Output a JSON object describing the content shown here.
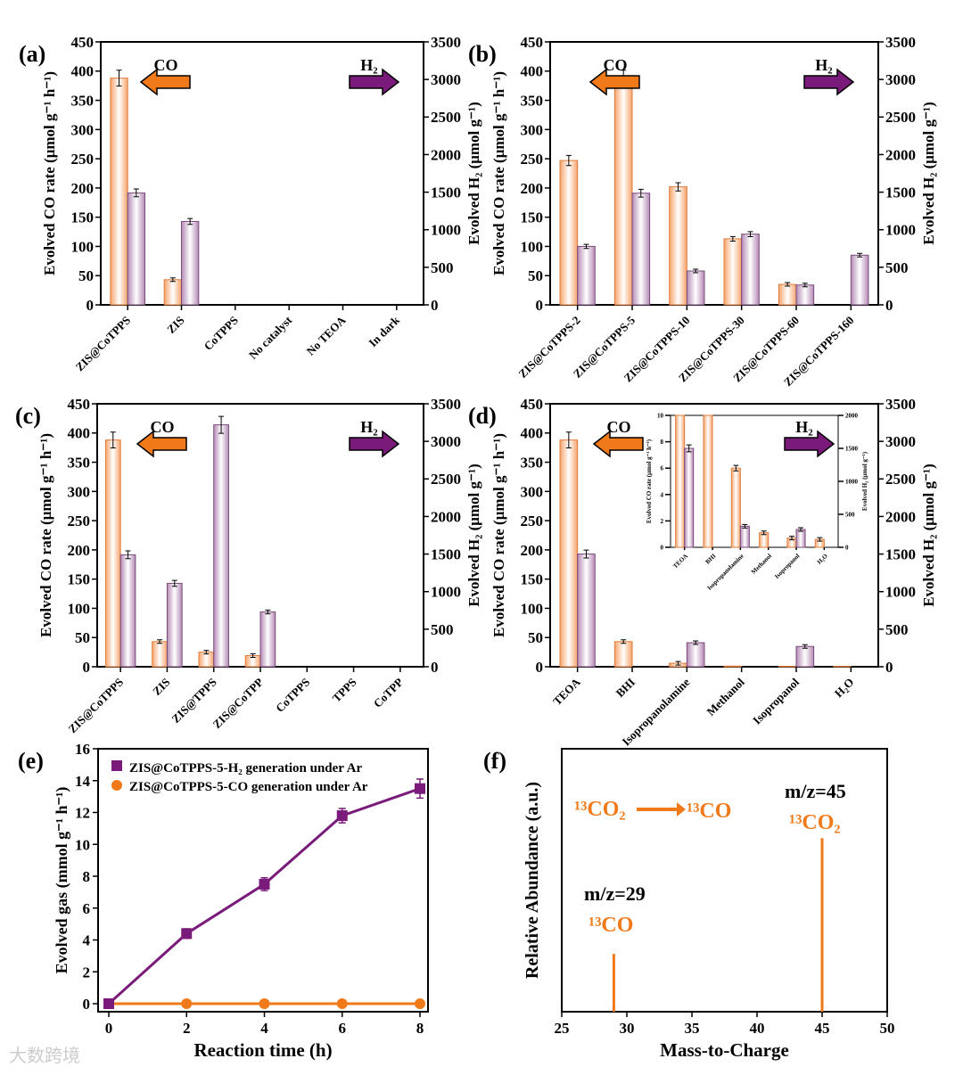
{
  "colors": {
    "co": "#f07a1a",
    "h2": "#7a1a7a",
    "co_bar": "#f6a46b",
    "h2_bar": "#b48ab4"
  },
  "watermark": "大数跨境",
  "chart_data": [
    {
      "panel": "(a)",
      "type": "bar",
      "ylabel": "Evolved CO rate (μmol g⁻¹ h⁻¹)",
      "y2label": "Evolved H₂ (μmol g⁻¹)",
      "ylim": [
        0,
        450
      ],
      "y2lim": [
        0,
        3500
      ],
      "arrow_co": "CO",
      "arrow_h2": "H₂",
      "categories": [
        "ZIS@CoTPPS",
        "ZIS",
        "CoTPPS",
        "No catalyst",
        "No TEOA",
        "In dark"
      ],
      "series": [
        {
          "name": "CO",
          "values": [
            388,
            43,
            0,
            0,
            0,
            0
          ]
        },
        {
          "name": "H2",
          "values": [
            1490,
            1110,
            0,
            0,
            0,
            0
          ]
        }
      ]
    },
    {
      "panel": "(b)",
      "type": "bar",
      "ylabel": "Evolved CO rate (μmol g⁻¹ h⁻¹)",
      "y2label": "Evolved H₂ (μmol g⁻¹)",
      "ylim": [
        0,
        450
      ],
      "y2lim": [
        0,
        3500
      ],
      "arrow_co": "CO",
      "arrow_h2": "H₂",
      "categories": [
        "ZIS@CoTPPS-2",
        "ZIS@CoTPPS-5",
        "ZIS@CoTPPS-10",
        "ZIS@CoTPPS-30",
        "ZIS@CoTPPS-60",
        "ZIS@CoTPPS-160"
      ],
      "series": [
        {
          "name": "CO",
          "values": [
            247,
            388,
            202,
            113,
            35,
            0
          ]
        },
        {
          "name": "H2",
          "values": [
            778,
            1486,
            451,
            941,
            264,
            661
          ]
        }
      ]
    },
    {
      "panel": "(c)",
      "type": "bar",
      "ylabel": "Evolved CO rate (μmol g⁻¹ h⁻¹)",
      "y2label": "Evolved H₂ (μmol g⁻¹)",
      "ylim": [
        0,
        450
      ],
      "y2lim": [
        0,
        3500
      ],
      "arrow_co": "CO",
      "arrow_h2": "H₂",
      "categories": [
        "ZIS@CoTPPS",
        "ZIS",
        "ZIS@TPPS",
        "ZIS@CoTPP",
        "CoTPPS",
        "TPPS",
        "CoTPP"
      ],
      "series": [
        {
          "name": "CO",
          "values": [
            388,
            43,
            25,
            19,
            0,
            0,
            0
          ]
        },
        {
          "name": "H2",
          "values": [
            1490,
            1110,
            3220,
            730,
            0,
            0,
            0
          ]
        }
      ]
    },
    {
      "panel": "(d)",
      "type": "bar",
      "ylabel": "Evolved CO rate (μmol g⁻¹ h⁻¹)",
      "y2label": "Evolved H₂ (μmol g⁻¹)",
      "ylim": [
        0,
        450
      ],
      "y2lim": [
        0,
        3500
      ],
      "arrow_co": "CO",
      "arrow_h2": "H₂",
      "categories": [
        "TEOA",
        "BHI",
        "Isopropanolamine",
        "Methanol",
        "Isopropanol",
        "H₂O"
      ],
      "series": [
        {
          "name": "CO",
          "values": [
            388,
            43,
            6,
            1.1,
            0.7,
            0.6
          ]
        },
        {
          "name": "H2",
          "values": [
            1500,
            0,
            320,
            0,
            270,
            0
          ]
        }
      ],
      "inset": {
        "ylim": [
          0,
          10
        ],
        "y2lim": [
          0,
          2000
        ]
      }
    },
    {
      "panel": "(e)",
      "type": "line",
      "xlabel": "Reaction time (h)",
      "ylabel": "Evolved gas (mmol g⁻¹ h⁻¹)",
      "xlim": [
        0,
        8
      ],
      "ylim": [
        0,
        16
      ],
      "x": [
        0,
        2,
        4,
        6,
        8
      ],
      "series": [
        {
          "name": "ZIS@CoTPPS-5-H₂ generation under Ar",
          "values": [
            0,
            4.4,
            7.5,
            11.8,
            13.5
          ],
          "errors": [
            0,
            0.3,
            0.4,
            0.45,
            0.6
          ]
        },
        {
          "name": "ZIS@CoTPPS-5-CO generation under Ar",
          "values": [
            0,
            0,
            0,
            0,
            0
          ],
          "errors": [
            0,
            0,
            0,
            0,
            0
          ]
        }
      ]
    },
    {
      "panel": "(f)",
      "type": "bar",
      "xlabel": "Mass-to-Charge",
      "ylabel": "Relative Abundance (a.u.)",
      "xlim": [
        25,
        50
      ],
      "x": [
        29,
        45
      ],
      "values": [
        0.22,
        0.66
      ],
      "annotations": {
        "reaction_from": "¹³CO₂",
        "reaction_to": "¹³CO",
        "peak1_mz": "m/z=29",
        "peak1_label": "¹³CO",
        "peak2_mz": "m/z=45",
        "peak2_label": "¹³CO₂"
      }
    }
  ]
}
